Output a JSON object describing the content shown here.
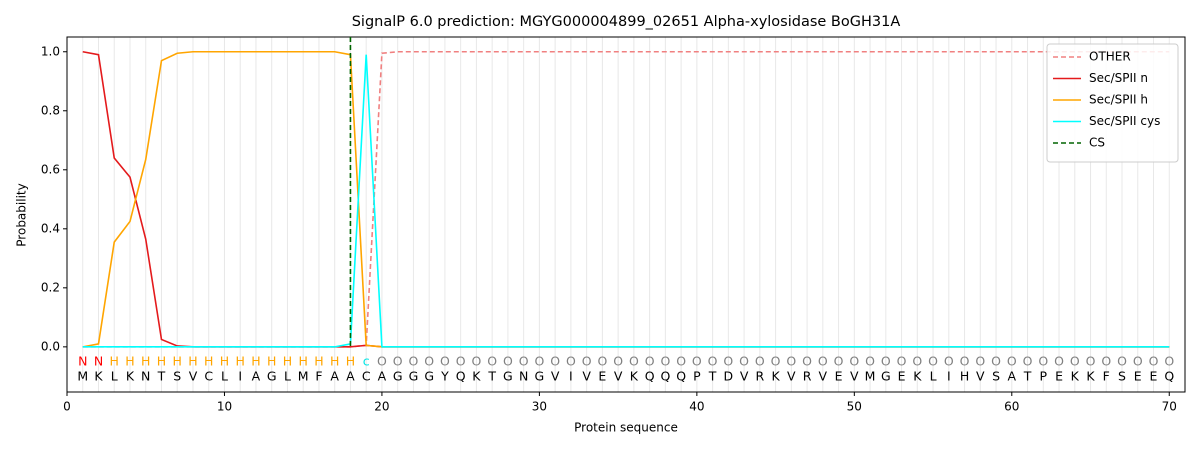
{
  "chart_data": {
    "type": "line",
    "title": "SignalP 6.0 prediction: MGYG000004899_02651 Alpha-xylosidase BoGH31A",
    "xlabel": "Protein sequence",
    "ylabel": "Probability",
    "x": [
      1,
      2,
      3,
      4,
      5,
      6,
      7,
      8,
      9,
      10,
      11,
      12,
      13,
      14,
      15,
      16,
      17,
      18,
      19,
      20,
      21,
      22,
      23,
      24,
      25,
      26,
      27,
      28,
      29,
      30,
      31,
      32,
      33,
      34,
      35,
      36,
      37,
      38,
      39,
      40,
      41,
      42,
      43,
      44,
      45,
      46,
      47,
      48,
      49,
      50,
      51,
      52,
      53,
      54,
      55,
      56,
      57,
      58,
      59,
      60,
      61,
      62,
      63,
      64,
      65,
      66,
      67,
      68,
      69,
      70
    ],
    "sequence": [
      "M",
      "K",
      "L",
      "K",
      "N",
      "T",
      "S",
      "V",
      "C",
      "L",
      "I",
      "A",
      "G",
      "L",
      "M",
      "F",
      "A",
      "A",
      "C",
      "A",
      "G",
      "G",
      "G",
      "Y",
      "Q",
      "K",
      "T",
      "G",
      "N",
      "G",
      "V",
      "I",
      "V",
      "E",
      "V",
      "K",
      "Q",
      "Q",
      "Q",
      "P",
      "T",
      "D",
      "V",
      "R",
      "K",
      "V",
      "R",
      "V",
      "E",
      "V",
      "M",
      "G",
      "E",
      "K",
      "L",
      "I",
      "H",
      "V",
      "S",
      "A",
      "T",
      "P",
      "E",
      "K",
      "K",
      "F",
      "S",
      "E",
      "E",
      "Q"
    ],
    "labels": [
      "N",
      "N",
      "H",
      "H",
      "H",
      "H",
      "H",
      "H",
      "H",
      "H",
      "H",
      "H",
      "H",
      "H",
      "H",
      "H",
      "H",
      "H",
      "c",
      "O",
      "O",
      "O",
      "O",
      "O",
      "O",
      "O",
      "O",
      "O",
      "O",
      "O",
      "O",
      "O",
      "O",
      "O",
      "O",
      "O",
      "O",
      "O",
      "O",
      "O",
      "O",
      "O",
      "O",
      "O",
      "O",
      "O",
      "O",
      "O",
      "O",
      "O",
      "O",
      "O",
      "O",
      "O",
      "O",
      "O",
      "O",
      "O",
      "O",
      "O",
      "O",
      "O",
      "O",
      "O",
      "O",
      "O",
      "O",
      "O",
      "O",
      "O"
    ],
    "label_colors": {
      "N": "#ff0000",
      "H": "#ffa500",
      "c": "#00e5e5",
      "O": "#808080"
    },
    "series": [
      {
        "name": "OTHER",
        "color": "#f08080",
        "dash": true,
        "values": [
          0,
          0,
          0,
          0,
          0,
          0,
          0,
          0,
          0,
          0,
          0,
          0,
          0,
          0,
          0,
          0,
          0,
          0,
          0.005,
          0.995,
          1,
          1,
          1,
          1,
          1,
          1,
          1,
          1,
          1,
          1,
          1,
          1,
          1,
          1,
          1,
          1,
          1,
          1,
          1,
          1,
          1,
          1,
          1,
          1,
          1,
          1,
          1,
          1,
          1,
          1,
          1,
          1,
          1,
          1,
          1,
          1,
          1,
          1,
          1,
          1,
          1,
          1,
          1,
          1,
          1,
          1,
          1,
          1,
          1,
          1
        ]
      },
      {
        "name": "Sec/SPII n",
        "color": "#e41a1c",
        "values": [
          1,
          0.99,
          0.64,
          0.575,
          0.365,
          0.025,
          0.003,
          0,
          0,
          0,
          0,
          0,
          0,
          0,
          0,
          0,
          0,
          0,
          0.005,
          0,
          0,
          0,
          0,
          0,
          0,
          0,
          0,
          0,
          0,
          0,
          0,
          0,
          0,
          0,
          0,
          0,
          0,
          0,
          0,
          0,
          0,
          0,
          0,
          0,
          0,
          0,
          0,
          0,
          0,
          0,
          0,
          0,
          0,
          0,
          0,
          0,
          0,
          0,
          0,
          0,
          0,
          0,
          0,
          0,
          0,
          0,
          0,
          0,
          0,
          0
        ]
      },
      {
        "name": "Sec/SPII h",
        "color": "#ffa500",
        "values": [
          0,
          0.01,
          0.355,
          0.425,
          0.635,
          0.97,
          0.995,
          1,
          1,
          1,
          1,
          1,
          1,
          1,
          1,
          1,
          1,
          0.99,
          0.005,
          0,
          0,
          0,
          0,
          0,
          0,
          0,
          0,
          0,
          0,
          0,
          0,
          0,
          0,
          0,
          0,
          0,
          0,
          0,
          0,
          0,
          0,
          0,
          0,
          0,
          0,
          0,
          0,
          0,
          0,
          0,
          0,
          0,
          0,
          0,
          0,
          0,
          0,
          0,
          0,
          0,
          0,
          0,
          0,
          0,
          0,
          0,
          0,
          0,
          0,
          0
        ]
      },
      {
        "name": "Sec/SPII cys",
        "color": "#00ffff",
        "values": [
          0,
          0,
          0,
          0,
          0,
          0,
          0,
          0,
          0,
          0,
          0,
          0,
          0,
          0,
          0,
          0,
          0,
          0.01,
          0.99,
          0,
          0,
          0,
          0,
          0,
          0,
          0,
          0,
          0,
          0,
          0,
          0,
          0,
          0,
          0,
          0,
          0,
          0,
          0,
          0,
          0,
          0,
          0,
          0,
          0,
          0,
          0,
          0,
          0,
          0,
          0,
          0,
          0,
          0,
          0,
          0,
          0,
          0,
          0,
          0,
          0,
          0,
          0,
          0,
          0,
          0,
          0,
          0,
          0,
          0,
          0
        ]
      }
    ],
    "cs": {
      "name": "CS",
      "color": "#006400",
      "x": 18
    },
    "xlim": [
      0,
      71
    ],
    "ylim": [
      -0.153,
      1.05
    ],
    "xticks": [
      0,
      10,
      20,
      30,
      40,
      50,
      60,
      70
    ],
    "yticks": [
      {
        "value": 0,
        "label": "0.0"
      },
      0.2,
      0.4,
      0.6,
      0.8,
      {
        "value": 1,
        "label": "1.0"
      }
    ],
    "legend": "upper right"
  }
}
